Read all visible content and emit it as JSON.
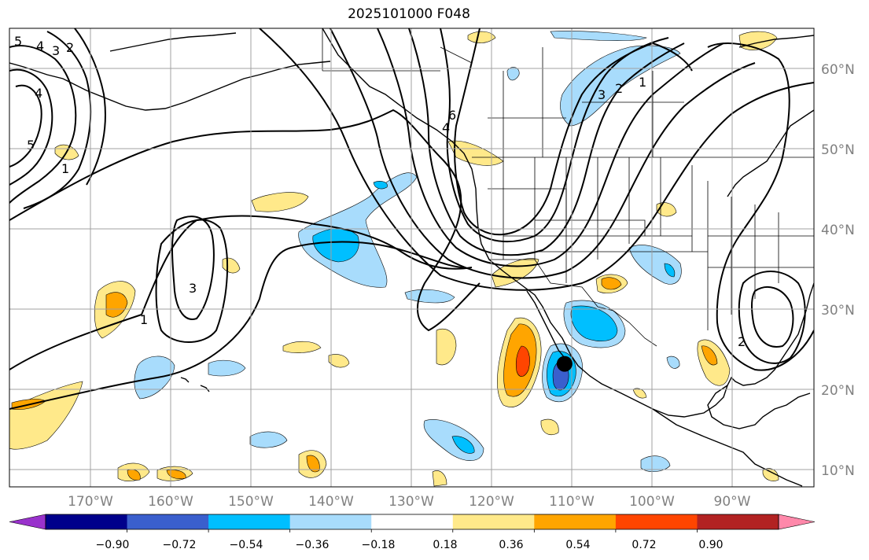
{
  "title": "2025101000 F048",
  "colors": {
    "pos_018": "#ffe98a",
    "pos_036": "#ffa500",
    "pos_054": "#ff4500",
    "pos_072": "#b22222",
    "pos_090": "#ff88aa",
    "neg_018": "#a8dcfc",
    "neg_036": "#00bfff",
    "neg_054": "#3a5fcd",
    "neg_072": "#00008b",
    "neg_090": "#9932cc",
    "marker": "#000000"
  },
  "map": {
    "lon_labels": [
      "170°W",
      "160°W",
      "150°W",
      "140°W",
      "130°W",
      "120°W",
      "110°W",
      "100°W",
      "90°W"
    ],
    "lat_labels": [
      "60°N",
      "50°N",
      "40°N",
      "30°N",
      "20°N",
      "10°N"
    ],
    "contour_labels": [
      "5",
      "4",
      "3",
      "2",
      "4",
      "5",
      "1",
      "3",
      "1",
      "6",
      "4",
      "3",
      "2",
      "1",
      "2"
    ],
    "marker": {
      "lon": -111,
      "lat": 23.3
    }
  },
  "colorbar": {
    "ticks": [
      "−0.90",
      "−0.72",
      "−0.54",
      "−0.36",
      "−0.18",
      "0.18",
      "0.36",
      "0.54",
      "0.72",
      "0.90"
    ],
    "colors": [
      "#9932cc",
      "#00008b",
      "#3a5fcd",
      "#00bfff",
      "#a8dcfc",
      "#ffffff",
      "#ffe98a",
      "#ffa500",
      "#ff4500",
      "#b22222",
      "#ff88aa"
    ]
  }
}
